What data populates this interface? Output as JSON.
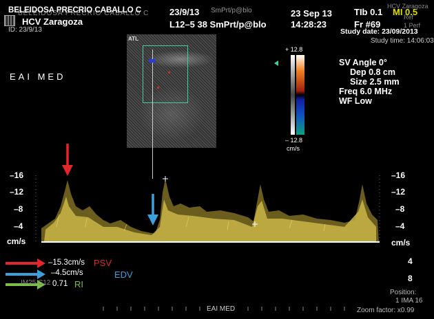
{
  "header": {
    "patient_name": "BELEIDOSA PRECRIO CABALLO C",
    "patient_name_overlay": "BELEIDOSA PRECRIO CABALLO C",
    "hospital": "HCV Zaragoza",
    "id": "ID: 23/9/13",
    "exam_date_short": "23/9/13",
    "preset_ghost": "SmPrt/p@blo",
    "probe": "L12–5 38 SmPrt/p@blo",
    "date": "23 Sep 13",
    "time": "14:28:23",
    "ti": "TIb 0.1",
    "mi": "MI 0.5",
    "fr": "Fr #69",
    "study_date": "Study date: 23/09/2013",
    "study_time": "Study time: 14:06:03",
    "hospital_ghost": "HCV Zaragoza",
    "ref": "Ref",
    "perf": "1 Perf"
  },
  "sidebar_left": {
    "eai_label": "EAI MED"
  },
  "bmode": {
    "brand": "ATL"
  },
  "color_scale": {
    "top": "+ 12.8",
    "bottom": "– 12.8",
    "unit": "cm/s"
  },
  "params": {
    "sv_angle": "SV Angle 0°",
    "depth": "Dep 0.8  cm",
    "size": "Size 2.5  mm",
    "freq": "Freq 6.0  MHz",
    "wf": "WF Low"
  },
  "doppler": {
    "left_ticks": [
      "–16",
      "–12",
      "–8",
      "–4"
    ],
    "right_ticks": [
      "–16",
      "–12",
      "–8",
      "–4"
    ],
    "unit": "cm/s",
    "right_positive_ticks": [
      "4",
      "8"
    ]
  },
  "measurements": {
    "psv_value": "–15.3cm/s",
    "edv_value": "–4.5cm/s",
    "ri_value": "0.71",
    "ri_ghost": "IM25 C12",
    "psv_label": "PSV",
    "edv_label": "EDV",
    "ri_label": "RI"
  },
  "footer": {
    "center": "EAI MED",
    "position_label": "Position:",
    "position_value": "1 IMA 16",
    "zoom": "Zoom factor: x0.99"
  },
  "colors": {
    "psv": "#e3262b",
    "edv": "#3aa0de",
    "ri": "#7cbf45",
    "roi": "#3fd0a0",
    "spectrum": "#d7c55a",
    "baseline": "#ffffff"
  }
}
